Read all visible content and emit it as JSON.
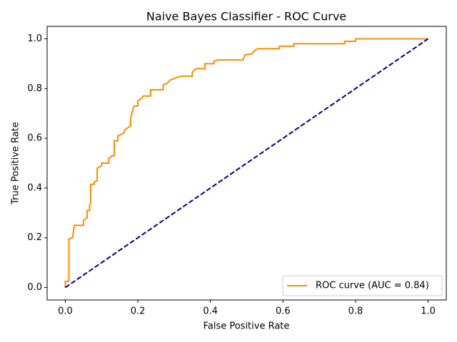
{
  "chart_data": {
    "type": "line",
    "title": "Naive Bayes Classifier - ROC Curve",
    "xlabel": "False Positive Rate",
    "ylabel": "True Positive Rate",
    "xlim": [
      -0.05,
      1.05
    ],
    "ylim": [
      -0.05,
      1.05
    ],
    "xticks": [
      {
        "value": 0,
        "label": "0.0"
      },
      {
        "value": 0.2,
        "label": "0.2"
      },
      {
        "value": 0.4,
        "label": "0.4"
      },
      {
        "value": 0.6,
        "label": "0.6"
      },
      {
        "value": 0.8,
        "label": "0.8"
      },
      {
        "value": 1,
        "label": "1.0"
      }
    ],
    "yticks": [
      {
        "value": 0,
        "label": "0.0"
      },
      {
        "value": 0.2,
        "label": "0.2"
      },
      {
        "value": 0.4,
        "label": "0.4"
      },
      {
        "value": 0.6,
        "label": "0.6"
      },
      {
        "value": 0.8,
        "label": "0.8"
      },
      {
        "value": 1,
        "label": "1.0"
      }
    ],
    "legend": "lower right",
    "series": [
      {
        "name": "ROC curve (AUC = 0.84)",
        "color": "#ff8c00",
        "linestyle": "solid",
        "x": [
          0,
          0,
          0.01,
          0.01,
          0.02,
          0.025,
          0.05,
          0.05,
          0.06,
          0.06,
          0.067,
          0.067,
          0.07,
          0.07,
          0.08,
          0.08,
          0.088,
          0.088,
          0.1,
          0.1,
          0.12,
          0.12,
          0.13,
          0.135,
          0.135,
          0.145,
          0.145,
          0.16,
          0.165,
          0.175,
          0.18,
          0.18,
          0.185,
          0.19,
          0.2,
          0.2,
          0.21,
          0.215,
          0.235,
          0.235,
          0.27,
          0.27,
          0.28,
          0.29,
          0.3,
          0.31,
          0.32,
          0.35,
          0.35,
          0.36,
          0.385,
          0.385,
          0.41,
          0.41,
          0.42,
          0.49,
          0.495,
          0.515,
          0.52,
          0.53,
          0.59,
          0.59,
          0.63,
          0.63,
          0.77,
          0.77,
          0.8,
          0.8,
          1
        ],
        "values": [
          0,
          0.025,
          0.025,
          0.195,
          0.2,
          0.25,
          0.25,
          0.27,
          0.28,
          0.31,
          0.31,
          0.33,
          0.34,
          0.415,
          0.415,
          0.425,
          0.43,
          0.48,
          0.49,
          0.5,
          0.5,
          0.52,
          0.53,
          0.53,
          0.59,
          0.59,
          0.61,
          0.62,
          0.635,
          0.645,
          0.65,
          0.68,
          0.71,
          0.73,
          0.73,
          0.75,
          0.76,
          0.77,
          0.77,
          0.795,
          0.795,
          0.815,
          0.82,
          0.835,
          0.84,
          0.845,
          0.85,
          0.85,
          0.865,
          0.88,
          0.88,
          0.9,
          0.9,
          0.91,
          0.915,
          0.915,
          0.935,
          0.94,
          0.95,
          0.96,
          0.96,
          0.97,
          0.97,
          0.98,
          0.98,
          0.99,
          0.99,
          1,
          1
        ]
      },
      {
        "color": "#000080",
        "linestyle": "dashed",
        "x": [
          0,
          1
        ],
        "values": [
          0,
          1
        ]
      }
    ]
  }
}
